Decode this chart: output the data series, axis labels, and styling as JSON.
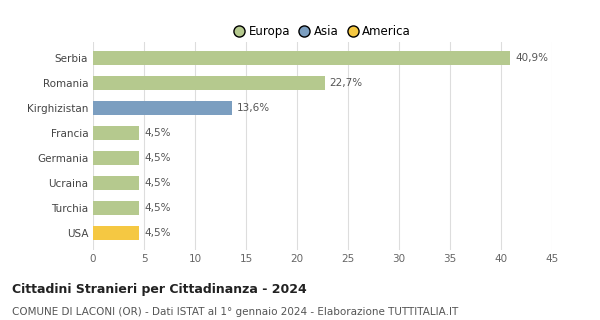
{
  "categories": [
    "Serbia",
    "Romania",
    "Kirghizistan",
    "Francia",
    "Germania",
    "Ucraina",
    "Turchia",
    "USA"
  ],
  "values": [
    40.9,
    22.7,
    13.6,
    4.5,
    4.5,
    4.5,
    4.5,
    4.5
  ],
  "labels": [
    "40,9%",
    "22,7%",
    "13,6%",
    "4,5%",
    "4,5%",
    "4,5%",
    "4,5%",
    "4,5%"
  ],
  "colors": [
    "#b5c98e",
    "#b5c98e",
    "#7b9ec0",
    "#b5c98e",
    "#b5c98e",
    "#b5c98e",
    "#b5c98e",
    "#f5c842"
  ],
  "legend": [
    {
      "label": "Europa",
      "color": "#b5c98e"
    },
    {
      "label": "Asia",
      "color": "#7b9ec0"
    },
    {
      "label": "America",
      "color": "#f5c842"
    }
  ],
  "xlim": [
    0,
    45
  ],
  "xticks": [
    0,
    5,
    10,
    15,
    20,
    25,
    30,
    35,
    40,
    45
  ],
  "title": "Cittadini Stranieri per Cittadinanza - 2024",
  "subtitle": "COMUNE DI LACONI (OR) - Dati ISTAT al 1° gennaio 2024 - Elaborazione TUTTITALIA.IT",
  "title_fontsize": 9,
  "subtitle_fontsize": 7.5,
  "background_color": "#ffffff",
  "grid_color": "#dddddd",
  "bar_height": 0.55,
  "label_fontsize": 7.5,
  "tick_fontsize": 7.5
}
